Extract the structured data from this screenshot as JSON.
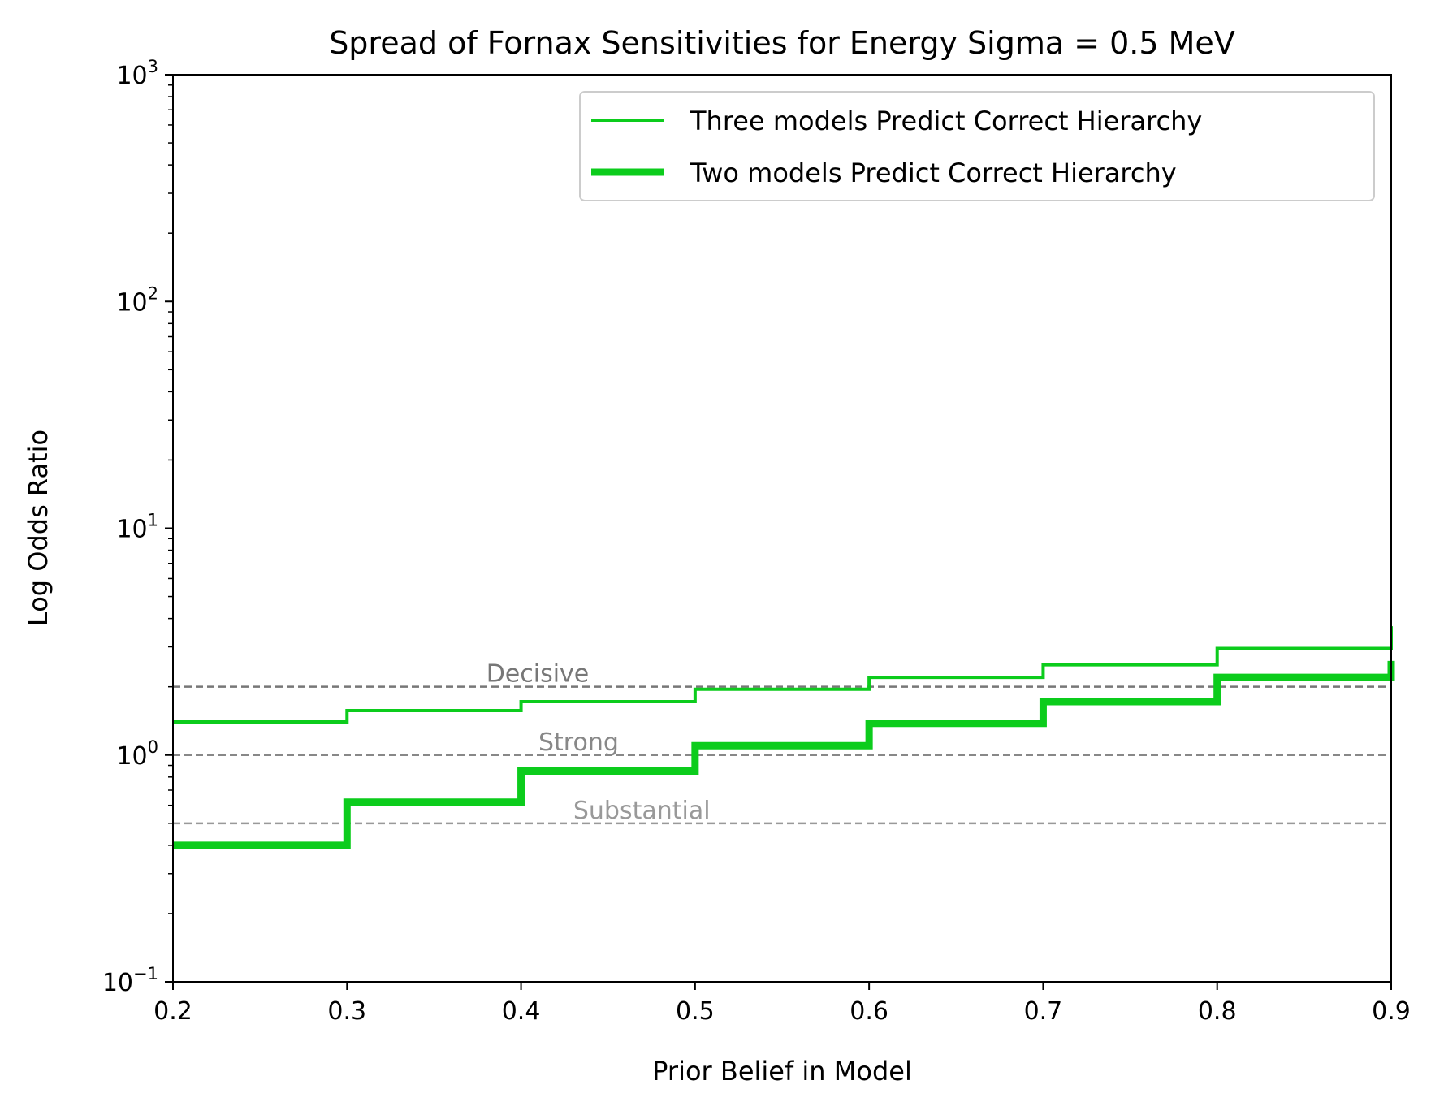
{
  "chart_data": {
    "type": "line",
    "title": "Spread of Fornax Sensitivities for Energy Sigma = 0.5 MeV",
    "xlabel": "Prior Belief in Model",
    "ylabel": "Log Odds Ratio",
    "xlim": [
      0.2,
      0.9
    ],
    "ylim": [
      0.1,
      1000
    ],
    "yscale": "log",
    "grid": false,
    "legend_position": "top-right",
    "x_ticks": [
      "0.2",
      "0.3",
      "0.4",
      "0.5",
      "0.6",
      "0.7",
      "0.8",
      "0.9"
    ],
    "y_ticks": [
      {
        "base": "10",
        "exp": "−1"
      },
      {
        "base": "10",
        "exp": "0"
      },
      {
        "base": "10",
        "exp": "1"
      },
      {
        "base": "10",
        "exp": "2"
      },
      {
        "base": "10",
        "exp": "3"
      }
    ],
    "series": [
      {
        "name": "Three models Predict Correct Hierarchy",
        "color": "#0ccc1c",
        "style": "thin",
        "x": [
          0.2,
          0.3,
          0.4,
          0.5,
          0.6,
          0.7,
          0.8,
          0.9
        ],
        "y": [
          1.4,
          1.57,
          1.72,
          1.95,
          2.2,
          2.5,
          2.95,
          3.7
        ]
      },
      {
        "name": "Two models Predict Correct Hierarchy",
        "color": "#0ccc1c",
        "style": "thick",
        "x": [
          0.2,
          0.3,
          0.4,
          0.5,
          0.6,
          0.7,
          0.8,
          0.9
        ],
        "y": [
          0.4,
          0.62,
          0.85,
          1.1,
          1.38,
          1.72,
          2.2,
          2.6
        ]
      }
    ],
    "reference_lines": [
      {
        "label": "Decisive",
        "y": 2,
        "color": "#777777",
        "label_x": 0.38
      },
      {
        "label": "Strong",
        "y": 1,
        "color": "#888888",
        "label_x": 0.41
      },
      {
        "label": "Substantial",
        "y": 0.5,
        "color": "#999999",
        "label_x": 0.43
      }
    ]
  }
}
